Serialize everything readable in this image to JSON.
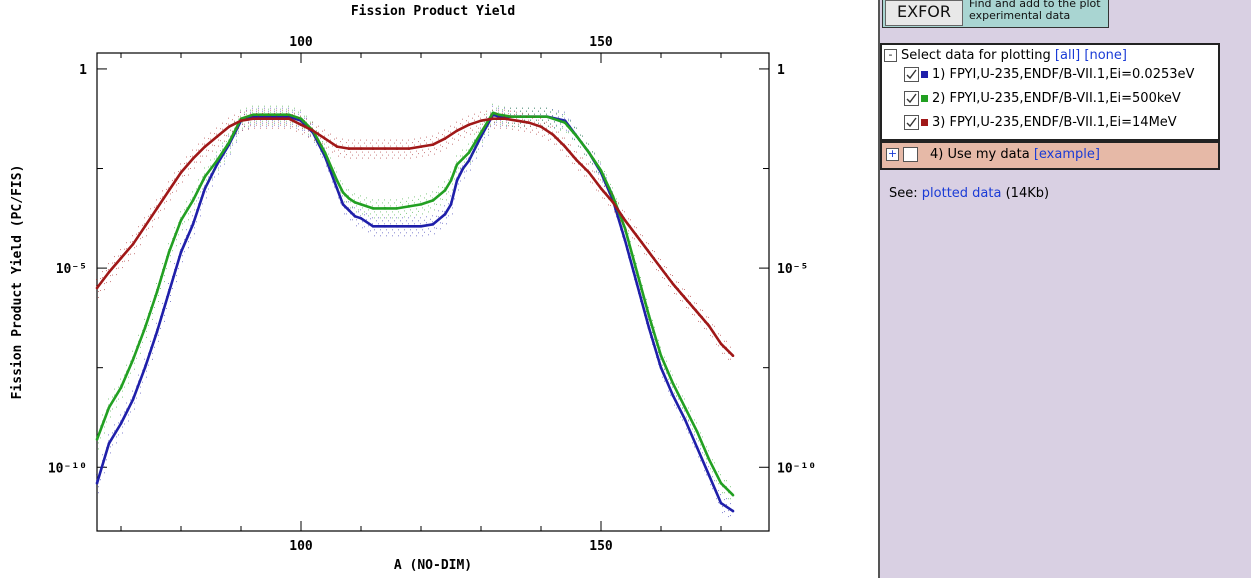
{
  "chart_data": {
    "type": "line",
    "title": "Fission Product Yield",
    "xlabel": "A (NO-DIM)",
    "ylabel": "Fission Product Yield (PC/FIS)",
    "x_ticks": [
      100,
      150
    ],
    "y_ticks": [
      "1",
      "10⁻⁵",
      "10⁻¹⁰"
    ],
    "xlim": [
      66,
      178
    ],
    "ylog_exponent_lim": [
      -11.6,
      0.4
    ],
    "log_y": true,
    "grid": false,
    "series": [
      {
        "name": "FPYI,U-235,ENDF/B-VII.1,Ei=0.0253eV",
        "color": "#1f1faa",
        "x": [
          66,
          68,
          70,
          72,
          74,
          76,
          78,
          80,
          82,
          84,
          86,
          88,
          90,
          92,
          95,
          98,
          100,
          102,
          104,
          106,
          107,
          108,
          109,
          110,
          112,
          114,
          116,
          118,
          120,
          122,
          124,
          125,
          126,
          127,
          128,
          130,
          132,
          133,
          135,
          138,
          141,
          144,
          146,
          148,
          150,
          152,
          154,
          156,
          158,
          160,
          162,
          164,
          166,
          168,
          170,
          172
        ],
        "y_exp": [
          -10.4,
          -9.4,
          -8.9,
          -8.3,
          -7.5,
          -6.6,
          -5.6,
          -4.6,
          -3.9,
          -3.0,
          -2.4,
          -1.9,
          -1.3,
          -1.2,
          -1.2,
          -1.2,
          -1.3,
          -1.6,
          -2.2,
          -3.0,
          -3.4,
          -3.55,
          -3.7,
          -3.75,
          -3.95,
          -3.95,
          -3.95,
          -3.95,
          -3.95,
          -3.9,
          -3.65,
          -3.4,
          -2.8,
          -2.5,
          -2.3,
          -1.7,
          -1.15,
          -1.2,
          -1.2,
          -1.2,
          -1.2,
          -1.3,
          -1.7,
          -2.1,
          -2.6,
          -3.3,
          -4.3,
          -5.4,
          -6.5,
          -7.5,
          -8.2,
          -8.8,
          -9.5,
          -10.2,
          -10.9,
          -11.1
        ]
      },
      {
        "name": "FPYI,U-235,ENDF/B-VII.1,Ei=500keV",
        "color": "#22a022",
        "x": [
          66,
          68,
          70,
          72,
          74,
          76,
          78,
          80,
          82,
          84,
          86,
          88,
          90,
          92,
          95,
          98,
          100,
          102,
          104,
          106,
          107,
          108,
          109,
          110,
          112,
          114,
          116,
          118,
          120,
          122,
          124,
          125,
          126,
          127,
          128,
          130,
          132,
          133,
          135,
          138,
          141,
          144,
          146,
          148,
          150,
          152,
          154,
          156,
          158,
          160,
          162,
          164,
          166,
          168,
          170,
          172
        ],
        "y_exp": [
          -9.3,
          -8.5,
          -8.0,
          -7.3,
          -6.5,
          -5.6,
          -4.6,
          -3.8,
          -3.3,
          -2.7,
          -2.3,
          -1.85,
          -1.25,
          -1.15,
          -1.15,
          -1.15,
          -1.25,
          -1.55,
          -2.1,
          -2.8,
          -3.1,
          -3.25,
          -3.35,
          -3.4,
          -3.5,
          -3.5,
          -3.5,
          -3.45,
          -3.4,
          -3.3,
          -3.05,
          -2.8,
          -2.4,
          -2.25,
          -2.1,
          -1.6,
          -1.1,
          -1.15,
          -1.2,
          -1.2,
          -1.2,
          -1.35,
          -1.7,
          -2.1,
          -2.55,
          -3.2,
          -4.0,
          -5.1,
          -6.2,
          -7.2,
          -7.9,
          -8.5,
          -9.1,
          -9.8,
          -10.4,
          -10.7
        ]
      },
      {
        "name": "FPYI,U-235,ENDF/B-VII.1,Ei=14MeV",
        "color": "#a01818",
        "x": [
          66,
          68,
          70,
          72,
          74,
          76,
          78,
          80,
          82,
          84,
          86,
          88,
          90,
          92,
          95,
          98,
          100,
          102,
          104,
          106,
          108,
          110,
          112,
          114,
          116,
          118,
          120,
          122,
          124,
          126,
          128,
          130,
          132,
          134,
          136,
          138,
          140,
          142,
          144,
          146,
          148,
          150,
          152,
          154,
          156,
          158,
          160,
          162,
          164,
          166,
          168,
          170,
          172
        ],
        "y_exp": [
          -5.5,
          -5.1,
          -4.75,
          -4.4,
          -3.95,
          -3.5,
          -3.05,
          -2.6,
          -2.25,
          -1.95,
          -1.7,
          -1.45,
          -1.3,
          -1.25,
          -1.25,
          -1.25,
          -1.4,
          -1.55,
          -1.75,
          -1.95,
          -2.0,
          -2.0,
          -2.0,
          -2.0,
          -2.0,
          -2.0,
          -1.95,
          -1.9,
          -1.75,
          -1.55,
          -1.4,
          -1.3,
          -1.25,
          -1.25,
          -1.3,
          -1.35,
          -1.45,
          -1.65,
          -1.95,
          -2.3,
          -2.6,
          -3.0,
          -3.35,
          -3.8,
          -4.2,
          -4.6,
          -5.0,
          -5.4,
          -5.75,
          -6.1,
          -6.45,
          -6.9,
          -7.2
        ]
      }
    ]
  },
  "side": {
    "exfor_label": "EXFOR",
    "exfor_note": "Find and add to the plot experimental data",
    "select_head": "Select data for plotting",
    "all_link": "[all]",
    "none_link": "[none]",
    "collapse_toggle": "-",
    "expand_toggle": "+",
    "items": [
      {
        "label": "1) FPYI,U-235,ENDF/B-VII.1,Ei=0.0253eV",
        "color": "#1f1faa",
        "checked": true
      },
      {
        "label": "2) FPYI,U-235,ENDF/B-VII.1,Ei=500keV",
        "color": "#22a022",
        "checked": true
      },
      {
        "label": "3) FPYI,U-235,ENDF/B-VII.1,Ei=14MeV",
        "color": "#a01818",
        "checked": true
      }
    ],
    "mydata_label": "4) Use my data",
    "mydata_link": "[example]",
    "see_prefix": "See:",
    "see_link": "plotted data",
    "see_suffix": "(14Kb)"
  }
}
